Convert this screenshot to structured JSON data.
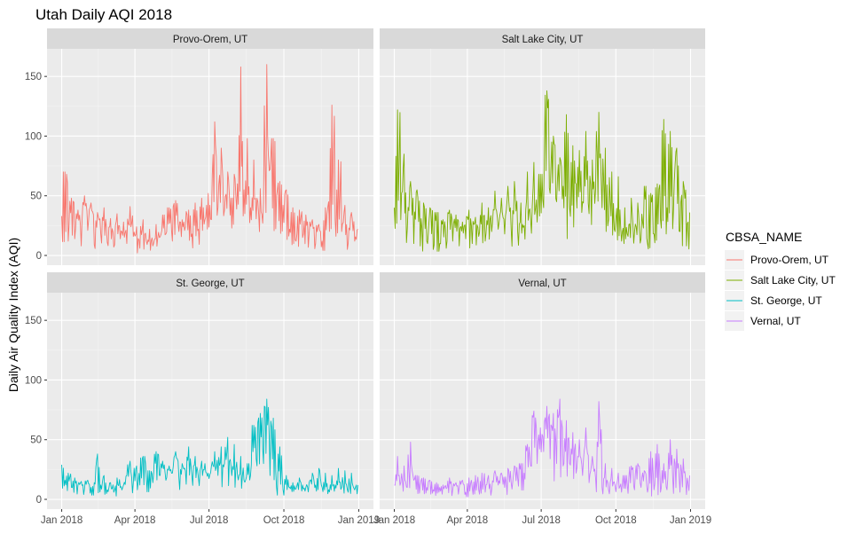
{
  "chart_data": {
    "type": "line",
    "title": "Utah Daily AQI 2018",
    "xlabel": "",
    "ylabel": "Daily Air Quality Index (AQI)",
    "x_range": [
      "2018-01-01",
      "2019-01-01"
    ],
    "ylim": [
      0,
      165
    ],
    "x_ticks": [
      "2018-01-01",
      "2018-04-01",
      "2018-07-01",
      "2018-10-01",
      "2019-01-01"
    ],
    "x_tick_labels": [
      "Jan 2018",
      "Apr 2018",
      "Jul 2018",
      "Oct 2018",
      "Jan 2019"
    ],
    "y_ticks": [
      0,
      50,
      100,
      150
    ],
    "grid": true,
    "legend_position": "right",
    "legend_title": "CBSA_NAME",
    "series": [
      {
        "name": "Provo-Orem, UT",
        "color": "#F8766D",
        "x": [
          "2018-01-01",
          "2018-01-05",
          "2018-01-09",
          "2018-01-13",
          "2018-01-17",
          "2018-01-21",
          "2018-01-25",
          "2018-01-29",
          "2018-02-02",
          "2018-02-06",
          "2018-02-10",
          "2018-02-14",
          "2018-02-18",
          "2018-02-22",
          "2018-02-26",
          "2018-03-02",
          "2018-03-06",
          "2018-03-10",
          "2018-03-14",
          "2018-03-18",
          "2018-03-22",
          "2018-03-26",
          "2018-03-30",
          "2018-04-03",
          "2018-04-07",
          "2018-04-11",
          "2018-04-15",
          "2018-04-19",
          "2018-04-23",
          "2018-04-27",
          "2018-05-01",
          "2018-05-05",
          "2018-05-09",
          "2018-05-13",
          "2018-05-17",
          "2018-05-21",
          "2018-05-25",
          "2018-05-29",
          "2018-06-02",
          "2018-06-06",
          "2018-06-10",
          "2018-06-14",
          "2018-06-18",
          "2018-06-22",
          "2018-06-26",
          "2018-06-30",
          "2018-07-04",
          "2018-07-08",
          "2018-07-12",
          "2018-07-16",
          "2018-07-20",
          "2018-07-24",
          "2018-07-28",
          "2018-08-01",
          "2018-08-05",
          "2018-08-09",
          "2018-08-13",
          "2018-08-17",
          "2018-08-21",
          "2018-08-25",
          "2018-08-29",
          "2018-09-02",
          "2018-09-06",
          "2018-09-10",
          "2018-09-14",
          "2018-09-18",
          "2018-09-22",
          "2018-09-26",
          "2018-09-30",
          "2018-10-04",
          "2018-10-08",
          "2018-10-12",
          "2018-10-16",
          "2018-10-20",
          "2018-10-24",
          "2018-10-28",
          "2018-11-01",
          "2018-11-05",
          "2018-11-09",
          "2018-11-13",
          "2018-11-17",
          "2018-11-21",
          "2018-11-25",
          "2018-11-29",
          "2018-12-03",
          "2018-12-07",
          "2018-12-11",
          "2018-12-15",
          "2018-12-19",
          "2018-12-23",
          "2018-12-27",
          "2018-12-31"
        ],
        "values": [
          33,
          70,
          12,
          48,
          14,
          38,
          8,
          50,
          21,
          44,
          9,
          36,
          18,
          40,
          11,
          31,
          7,
          35,
          14,
          28,
          10,
          41,
          16,
          24,
          6,
          30,
          12,
          22,
          8,
          26,
          15,
          34,
          18,
          40,
          12,
          46,
          20,
          30,
          24,
          38,
          18,
          44,
          22,
          48,
          30,
          52,
          30,
          112,
          40,
          90,
          38,
          70,
          48,
          68,
          60,
          158,
          55,
          98,
          40,
          80,
          48,
          56,
          45,
          160,
          72,
          98,
          50,
          62,
          42,
          55,
          22,
          40,
          12,
          38,
          15,
          34,
          18,
          30,
          10,
          26,
          12,
          40,
          45,
          126,
          30,
          80,
          20,
          42,
          10,
          36,
          12,
          22
        ]
      },
      {
        "name": "Salt Lake City, UT",
        "color": "#7CAE00",
        "x": [
          "2018-01-01",
          "2018-01-05",
          "2018-01-09",
          "2018-01-13",
          "2018-01-17",
          "2018-01-21",
          "2018-01-25",
          "2018-01-29",
          "2018-02-02",
          "2018-02-06",
          "2018-02-10",
          "2018-02-14",
          "2018-02-18",
          "2018-02-22",
          "2018-02-26",
          "2018-03-02",
          "2018-03-06",
          "2018-03-10",
          "2018-03-14",
          "2018-03-18",
          "2018-03-22",
          "2018-03-26",
          "2018-03-30",
          "2018-04-03",
          "2018-04-07",
          "2018-04-11",
          "2018-04-15",
          "2018-04-19",
          "2018-04-23",
          "2018-04-27",
          "2018-05-01",
          "2018-05-05",
          "2018-05-09",
          "2018-05-13",
          "2018-05-17",
          "2018-05-21",
          "2018-05-25",
          "2018-05-29",
          "2018-06-02",
          "2018-06-06",
          "2018-06-10",
          "2018-06-14",
          "2018-06-18",
          "2018-06-22",
          "2018-06-26",
          "2018-06-30",
          "2018-07-04",
          "2018-07-08",
          "2018-07-12",
          "2018-07-16",
          "2018-07-20",
          "2018-07-24",
          "2018-07-28",
          "2018-08-01",
          "2018-08-05",
          "2018-08-09",
          "2018-08-13",
          "2018-08-17",
          "2018-08-21",
          "2018-08-25",
          "2018-08-29",
          "2018-09-02",
          "2018-09-06",
          "2018-09-10",
          "2018-09-14",
          "2018-09-18",
          "2018-09-22",
          "2018-09-26",
          "2018-09-30",
          "2018-10-04",
          "2018-10-08",
          "2018-10-12",
          "2018-10-16",
          "2018-10-20",
          "2018-10-24",
          "2018-10-28",
          "2018-11-01",
          "2018-11-05",
          "2018-11-09",
          "2018-11-13",
          "2018-11-17",
          "2018-11-21",
          "2018-11-25",
          "2018-11-29",
          "2018-12-03",
          "2018-12-07",
          "2018-12-11",
          "2018-12-15",
          "2018-12-19",
          "2018-12-23",
          "2018-12-27",
          "2018-12-31"
        ],
        "values": [
          40,
          122,
          30,
          85,
          22,
          62,
          10,
          55,
          8,
          44,
          12,
          40,
          5,
          36,
          10,
          30,
          6,
          38,
          12,
          34,
          8,
          28,
          14,
          38,
          10,
          32,
          16,
          44,
          12,
          40,
          20,
          54,
          22,
          48,
          18,
          58,
          22,
          62,
          20,
          44,
          25,
          70,
          30,
          78,
          28,
          68,
          40,
          138,
          52,
          100,
          45,
          82,
          58,
          118,
          40,
          92,
          60,
          88,
          45,
          104,
          35,
          80,
          55,
          120,
          40,
          90,
          30,
          70,
          20,
          66,
          12,
          40,
          16,
          48,
          20,
          44,
          14,
          58,
          10,
          52,
          18,
          60,
          30,
          114,
          40,
          104,
          38,
          90,
          20,
          62,
          8,
          36
        ]
      },
      {
        "name": "St. George, UT",
        "color": "#00BFC4",
        "x": [
          "2018-01-01",
          "2018-01-05",
          "2018-01-09",
          "2018-01-13",
          "2018-01-17",
          "2018-01-21",
          "2018-01-25",
          "2018-01-29",
          "2018-02-02",
          "2018-02-06",
          "2018-02-10",
          "2018-02-14",
          "2018-02-18",
          "2018-02-22",
          "2018-02-26",
          "2018-03-02",
          "2018-03-06",
          "2018-03-10",
          "2018-03-14",
          "2018-03-18",
          "2018-03-22",
          "2018-03-26",
          "2018-03-30",
          "2018-04-03",
          "2018-04-07",
          "2018-04-11",
          "2018-04-15",
          "2018-04-19",
          "2018-04-23",
          "2018-04-27",
          "2018-05-01",
          "2018-05-05",
          "2018-05-09",
          "2018-05-13",
          "2018-05-17",
          "2018-05-21",
          "2018-05-25",
          "2018-05-29",
          "2018-06-02",
          "2018-06-06",
          "2018-06-10",
          "2018-06-14",
          "2018-06-18",
          "2018-06-22",
          "2018-06-26",
          "2018-06-30",
          "2018-07-04",
          "2018-07-08",
          "2018-07-12",
          "2018-07-16",
          "2018-07-20",
          "2018-07-24",
          "2018-07-28",
          "2018-08-01",
          "2018-08-05",
          "2018-08-09",
          "2018-08-13",
          "2018-08-17",
          "2018-08-21",
          "2018-08-25",
          "2018-08-29",
          "2018-09-02",
          "2018-09-06",
          "2018-09-10",
          "2018-09-14",
          "2018-09-18",
          "2018-09-22",
          "2018-09-26",
          "2018-09-30",
          "2018-10-04",
          "2018-10-08",
          "2018-10-12",
          "2018-10-16",
          "2018-10-20",
          "2018-10-24",
          "2018-10-28",
          "2018-11-01",
          "2018-11-05",
          "2018-11-09",
          "2018-11-13",
          "2018-11-17",
          "2018-11-21",
          "2018-11-25",
          "2018-11-29",
          "2018-12-03",
          "2018-12-07",
          "2018-12-11",
          "2018-12-15",
          "2018-12-19",
          "2018-12-23",
          "2018-12-27",
          "2018-12-31"
        ],
        "values": [
          29,
          16,
          22,
          10,
          18,
          12,
          15,
          9,
          16,
          10,
          14,
          38,
          12,
          20,
          8,
          14,
          6,
          18,
          10,
          12,
          20,
          32,
          14,
          28,
          12,
          36,
          18,
          24,
          14,
          40,
          20,
          32,
          16,
          28,
          22,
          40,
          18,
          30,
          24,
          44,
          20,
          36,
          18,
          32,
          30,
          22,
          28,
          40,
          20,
          44,
          30,
          52,
          28,
          46,
          20,
          36,
          16,
          30,
          20,
          62,
          28,
          72,
          30,
          84,
          20,
          68,
          10,
          44,
          8,
          20,
          10,
          14,
          9,
          18,
          12,
          10,
          14,
          22,
          12,
          26,
          10,
          22,
          8,
          20,
          12,
          26,
          10,
          24,
          6,
          22,
          8,
          12
        ]
      },
      {
        "name": "Vernal, UT",
        "color": "#C77CFF",
        "x": [
          "2018-01-01",
          "2018-01-05",
          "2018-01-09",
          "2018-01-13",
          "2018-01-17",
          "2018-01-21",
          "2018-01-25",
          "2018-01-29",
          "2018-02-02",
          "2018-02-06",
          "2018-02-10",
          "2018-02-14",
          "2018-02-18",
          "2018-02-22",
          "2018-02-26",
          "2018-03-02",
          "2018-03-06",
          "2018-03-10",
          "2018-03-14",
          "2018-03-18",
          "2018-03-22",
          "2018-03-26",
          "2018-03-30",
          "2018-04-03",
          "2018-04-07",
          "2018-04-11",
          "2018-04-15",
          "2018-04-19",
          "2018-04-23",
          "2018-04-27",
          "2018-05-01",
          "2018-05-05",
          "2018-05-09",
          "2018-05-13",
          "2018-05-17",
          "2018-05-21",
          "2018-05-25",
          "2018-05-29",
          "2018-06-02",
          "2018-06-06",
          "2018-06-10",
          "2018-06-14",
          "2018-06-18",
          "2018-06-22",
          "2018-06-26",
          "2018-06-30",
          "2018-07-04",
          "2018-07-08",
          "2018-07-12",
          "2018-07-16",
          "2018-07-20",
          "2018-07-24",
          "2018-07-28",
          "2018-08-01",
          "2018-08-05",
          "2018-08-09",
          "2018-08-13",
          "2018-08-17",
          "2018-08-21",
          "2018-08-25",
          "2018-08-29",
          "2018-09-02",
          "2018-09-06",
          "2018-09-10",
          "2018-09-14",
          "2018-09-18",
          "2018-09-22",
          "2018-09-26",
          "2018-09-30",
          "2018-10-04",
          "2018-10-08",
          "2018-10-12",
          "2018-10-16",
          "2018-10-20",
          "2018-10-24",
          "2018-10-28",
          "2018-11-01",
          "2018-11-05",
          "2018-11-09",
          "2018-11-13",
          "2018-11-17",
          "2018-11-21",
          "2018-11-25",
          "2018-11-29",
          "2018-12-03",
          "2018-12-07",
          "2018-12-11",
          "2018-12-15",
          "2018-12-19",
          "2018-12-23",
          "2018-12-27",
          "2018-12-31"
        ],
        "values": [
          12,
          36,
          14,
          28,
          10,
          48,
          16,
          20,
          12,
          18,
          10,
          16,
          8,
          14,
          10,
          12,
          9,
          18,
          8,
          14,
          10,
          16,
          6,
          18,
          10,
          20,
          8,
          22,
          6,
          20,
          8,
          24,
          12,
          22,
          10,
          26,
          14,
          28,
          18,
          30,
          22,
          46,
          28,
          74,
          30,
          60,
          40,
          78,
          34,
          72,
          30,
          84,
          28,
          66,
          30,
          56,
          22,
          50,
          20,
          60,
          14,
          36,
          18,
          82,
          10,
          30,
          8,
          26,
          12,
          22,
          6,
          20,
          5,
          28,
          8,
          30,
          10,
          24,
          6,
          40,
          8,
          46,
          6,
          30,
          8,
          50,
          5,
          42,
          6,
          34,
          4,
          20
        ]
      }
    ],
    "panels": [
      {
        "strip": "Provo-Orem, UT",
        "series_index": 0
      },
      {
        "strip": "Salt Lake City, UT",
        "series_index": 1
      },
      {
        "strip": "St. George, UT",
        "series_index": 2
      },
      {
        "strip": "Vernal, UT",
        "series_index": 3
      }
    ]
  }
}
